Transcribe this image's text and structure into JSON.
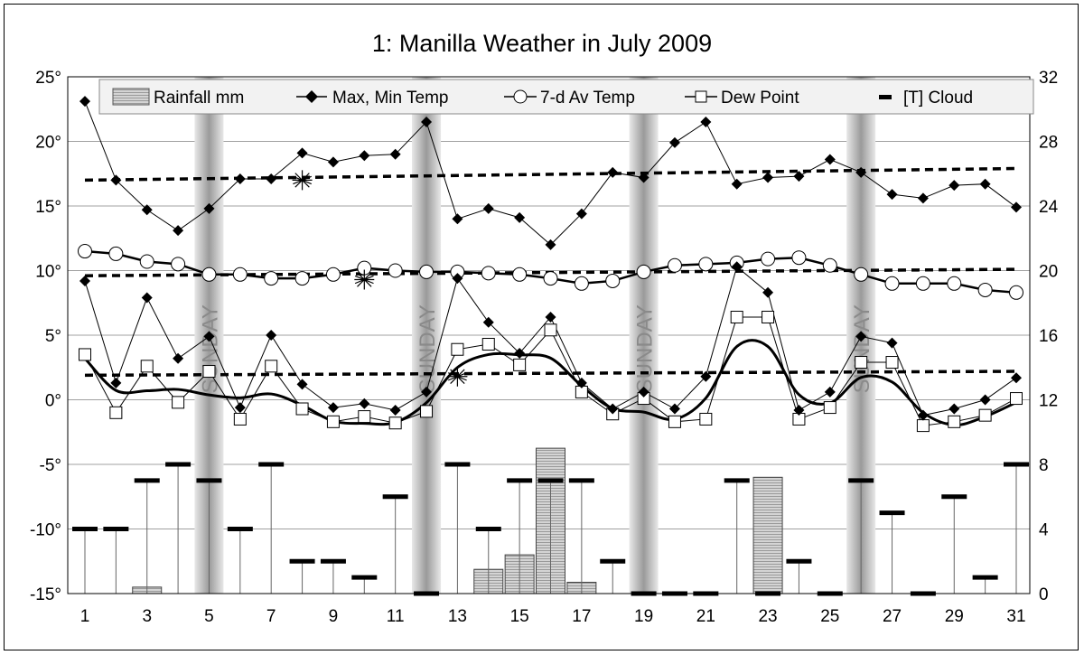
{
  "chart_data": {
    "type": "line",
    "title": "1: Manilla Weather in July 2009",
    "x": [
      1,
      2,
      3,
      4,
      5,
      6,
      7,
      8,
      9,
      10,
      11,
      12,
      13,
      14,
      15,
      16,
      17,
      18,
      19,
      20,
      21,
      22,
      23,
      24,
      25,
      26,
      27,
      28,
      29,
      30,
      31
    ],
    "x_ticks": [
      "1",
      "3",
      "5",
      "7",
      "9",
      "11",
      "13",
      "15",
      "17",
      "19",
      "21",
      "23",
      "25",
      "27",
      "29",
      "31"
    ],
    "ylim_left": [
      -15,
      25
    ],
    "y_ticks_left": [
      "25°",
      "20°",
      "15°",
      "10°",
      "5°",
      "0°",
      "-5°",
      "-10°",
      "-15°"
    ],
    "ylim_right": [
      0,
      32
    ],
    "y_ticks_right": [
      "32",
      "28",
      "24",
      "20",
      "16",
      "12",
      "8",
      "4",
      "0"
    ],
    "grid": "horizontal",
    "legend_placement": "top",
    "legend": [
      "Rainfall mm",
      "Max, Min Temp",
      "7-d Av Temp",
      "Dew Point",
      "[T] Cloud"
    ],
    "sunday_label": "SUNDAY",
    "sundays": [
      5,
      12,
      19,
      26
    ],
    "series": {
      "max_temp": [
        23.1,
        17.0,
        14.7,
        13.1,
        14.8,
        17.1,
        17.1,
        19.1,
        18.4,
        18.9,
        19.0,
        21.5,
        14.0,
        14.8,
        14.1,
        12.0,
        14.4,
        17.6,
        17.2,
        19.9,
        21.5,
        16.7,
        17.2,
        17.3,
        18.6,
        17.6,
        15.9,
        15.6,
        16.6,
        16.7,
        14.9
      ],
      "min_temp": [
        9.2,
        1.3,
        7.9,
        3.2,
        4.9,
        -0.6,
        5.0,
        1.2,
        -0.6,
        -0.3,
        -0.8,
        0.6,
        9.4,
        6.0,
        3.6,
        6.4,
        1.3,
        -0.7,
        0.6,
        -0.7,
        1.8,
        10.3,
        8.3,
        -0.8,
        0.6,
        4.9,
        4.4,
        -1.2,
        -0.7,
        0.0,
        1.7
      ],
      "avg_temp_7d": [
        11.5,
        11.3,
        10.7,
        10.5,
        9.7,
        9.7,
        9.4,
        9.4,
        9.7,
        10.2,
        10.0,
        9.9,
        9.9,
        9.8,
        9.7,
        9.4,
        9.0,
        9.2,
        9.9,
        10.4,
        10.5,
        10.6,
        10.9,
        11.0,
        10.4,
        9.7,
        9.0,
        9.0,
        9.0,
        8.5,
        8.3
      ],
      "dew_point": [
        3.5,
        -1.0,
        2.6,
        -0.2,
        2.2,
        -1.5,
        2.6,
        -0.7,
        -1.7,
        -1.3,
        -1.8,
        -0.9,
        3.9,
        4.3,
        2.7,
        5.4,
        0.6,
        -1.1,
        0.1,
        -1.7,
        -1.5,
        6.4,
        6.4,
        -1.5,
        -0.6,
        2.9,
        2.9,
        -2.0,
        -1.7,
        -1.2,
        0.1
      ],
      "rainfall_mm": [
        0,
        0,
        0.4,
        0,
        0,
        0,
        0,
        0,
        0,
        0,
        0,
        0,
        0,
        1.5,
        2.4,
        9.0,
        0.7,
        0,
        0,
        0,
        0,
        0,
        7.2,
        0,
        0,
        0,
        0,
        0,
        0,
        0,
        0
      ],
      "cloud": [
        4,
        4,
        7,
        8,
        7,
        4,
        8,
        2,
        2,
        1,
        6,
        0,
        8,
        4,
        7,
        7,
        7,
        2,
        0,
        0,
        0,
        7,
        0,
        2,
        0,
        7,
        5,
        0,
        6,
        1,
        8
      ],
      "dashed_reference_lines": [
        [
          17.0,
          17.9
        ],
        [
          9.6,
          10.1
        ],
        [
          1.9,
          2.2
        ]
      ],
      "asterisk_markers": [
        {
          "day": 8,
          "value": 17.0
        },
        {
          "day": 10,
          "value": 9.3
        },
        {
          "day": 13,
          "value": 1.8
        }
      ]
    },
    "colors": {
      "sunday_band": "#a0a0a0",
      "rain_fill": "#c8c8c8",
      "grid": "#a0a0a0",
      "lines": "#000000"
    }
  }
}
